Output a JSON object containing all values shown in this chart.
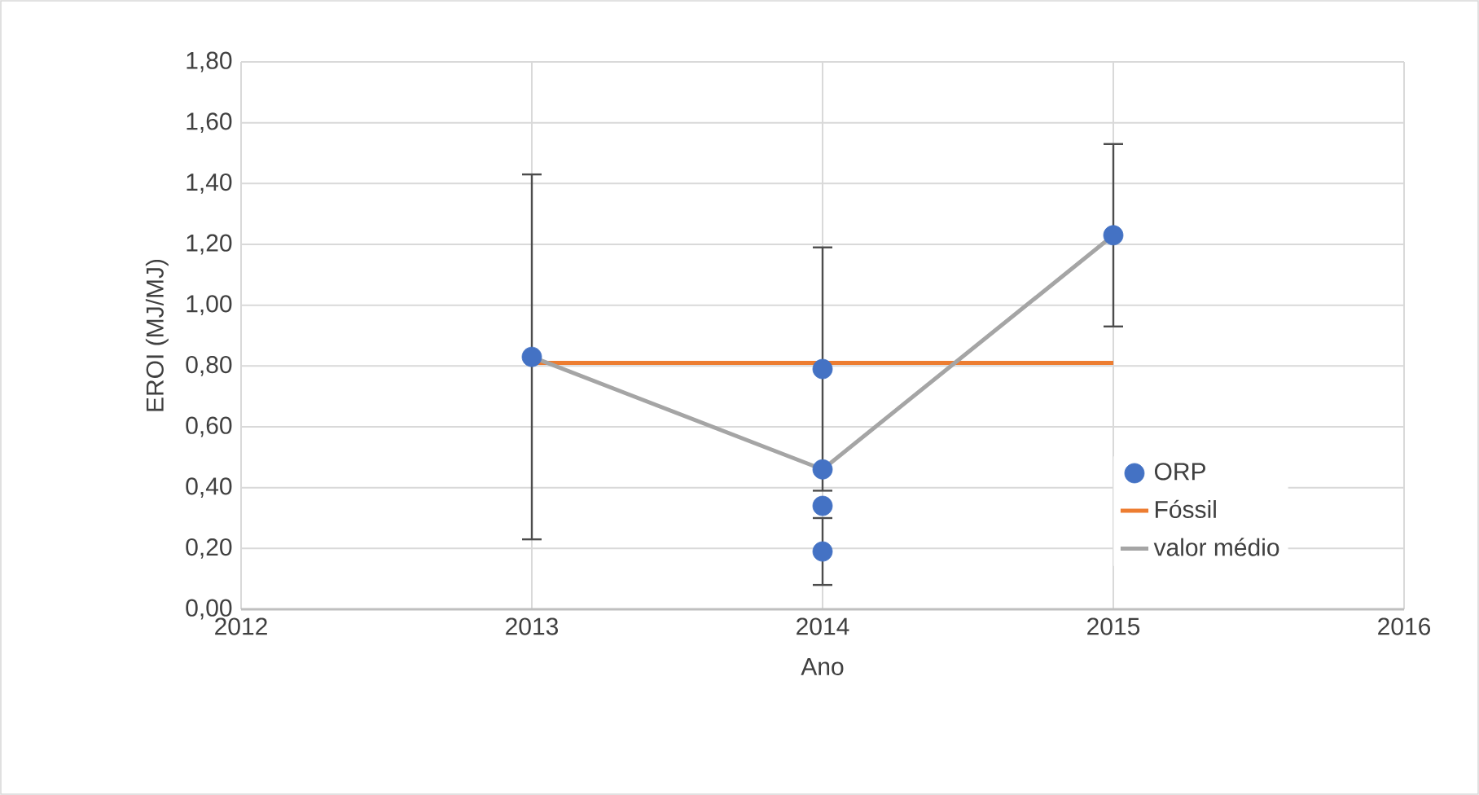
{
  "chart_data": {
    "type": "scatter",
    "xlabel": "Ano",
    "ylabel": "EROI (MJ/MJ)",
    "series": [
      {
        "name": "ORP",
        "color": "#4472c4",
        "marker": "circle",
        "x": [
          2013,
          2014,
          2014,
          2014,
          2014,
          2015
        ],
        "values": [
          0.83,
          0.79,
          0.46,
          0.34,
          0.19,
          1.23
        ],
        "errors": [
          0.6,
          0.4,
          null,
          null,
          0.11,
          0.3
        ]
      },
      {
        "name": "Fóssil",
        "type": "line",
        "color": "#ed7d31",
        "marker": "none",
        "line_style": "solid",
        "x": [
          2013,
          2015
        ],
        "values": [
          0.81,
          0.81
        ]
      },
      {
        "name": "valor médio",
        "type": "line",
        "color": "#a5a5a5",
        "marker": "none",
        "line_style": "solid",
        "x": [
          2013,
          2014,
          2015
        ],
        "values": [
          0.83,
          0.46,
          1.23
        ]
      }
    ],
    "xlim": [
      2012,
      2016
    ],
    "xticks": [
      2012,
      2013,
      2014,
      2015,
      2016
    ],
    "ylim": [
      0,
      1.8
    ],
    "yticks": [
      {
        "value": 0,
        "label": "0,00"
      },
      {
        "value": 0.2,
        "label": "0,20"
      },
      {
        "value": 0.4,
        "label": "0,40"
      },
      {
        "value": 0.6,
        "label": "0,60"
      },
      {
        "value": 0.8,
        "label": "0,80"
      },
      {
        "value": 1.0,
        "label": "1,00"
      },
      {
        "value": 1.2,
        "label": "1,20"
      },
      {
        "value": 1.4,
        "label": "1,40"
      },
      {
        "value": 1.6,
        "label": "1,60"
      },
      {
        "value": 1.8,
        "label": "1,80"
      }
    ],
    "grid": true,
    "legend": "right"
  }
}
